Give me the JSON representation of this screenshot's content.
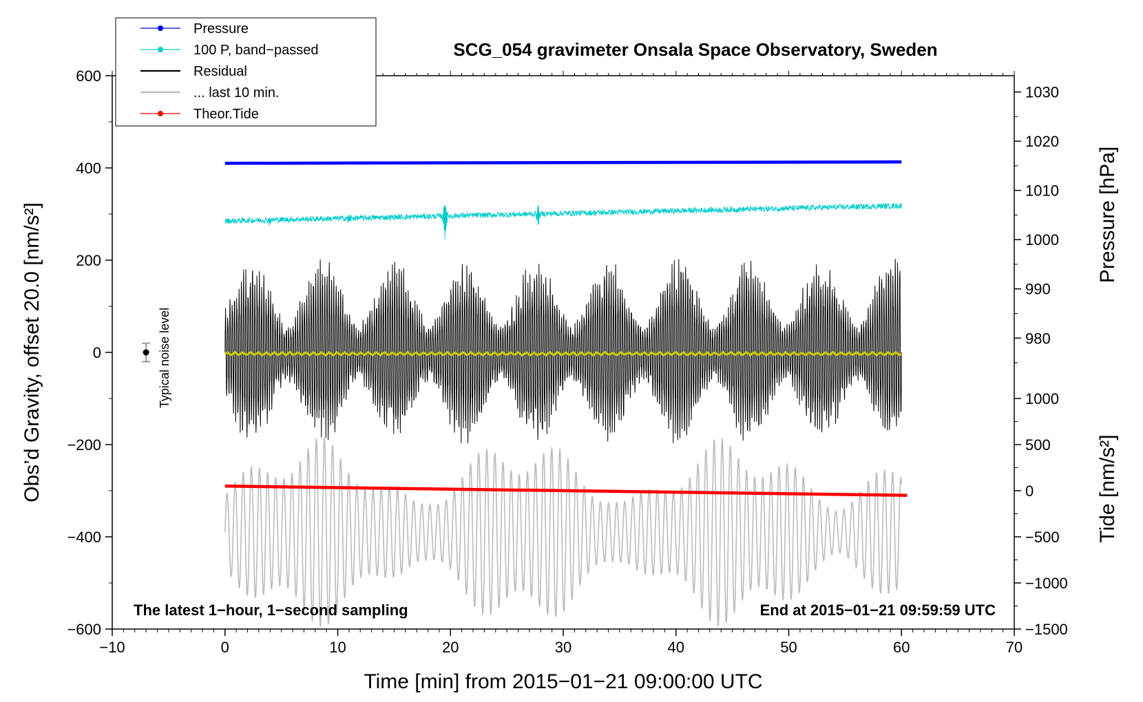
{
  "chart_data": {
    "type": "line",
    "title": "SCG_054 gravimeter Onsala Space Observatory, Sweden",
    "xlabel": "Time [min] from 2015−01−21 09:00:00 UTC",
    "ylabel_left": "Obs’d Gravity, offset 20.0 [nm/s²]",
    "ylabel_right_pressure": "Pressure [hPa]",
    "ylabel_right_tide": "Tide [nm/s²]",
    "xlim": [
      -10,
      70
    ],
    "ylim": [
      -600,
      600
    ],
    "x_ticks": [
      -10,
      0,
      10,
      20,
      30,
      40,
      50,
      60,
      70
    ],
    "x_tick_labels": [
      "−10",
      "0",
      "10",
      "20",
      "30",
      "40",
      "50",
      "60",
      "70"
    ],
    "y_ticks": [
      -600,
      -400,
      -200,
      0,
      200,
      400,
      600
    ],
    "y_tick_labels": [
      "−600",
      "−400",
      "−200",
      "0",
      "200",
      "400",
      "600"
    ],
    "pressure_axis": {
      "ticks": [
        980,
        990,
        1000,
        1010,
        1020,
        1030
      ],
      "tick_labels": [
        "980",
        "990",
        "1000",
        "1010",
        "1020",
        "1030"
      ],
      "range_in_left_units": [
        -300,
        600
      ],
      "range": [
        949,
        1033.3
      ]
    },
    "tide_axis": {
      "ticks": [
        -1500,
        -1000,
        -500,
        0,
        500,
        1000
      ],
      "tick_labels": [
        "−1500",
        "−1000",
        "−500",
        "0",
        "500",
        "1000"
      ],
      "range": [
        -1500,
        1000
      ],
      "left_units_at_min": -600,
      "left_units_per_tide_unit": 0.2
    },
    "legend": [
      {
        "label": "Pressure",
        "color": "#0000ff",
        "marker": true
      },
      {
        "label": "100 P, band−passed",
        "color": "#00cccc",
        "marker": true
      },
      {
        "label": "Residual",
        "color": "#000000",
        "marker": false
      },
      {
        "label": "... last 10 min.",
        "color": "#bbbbbb",
        "marker": false
      },
      {
        "label": "Theor.Tide",
        "color": "#ff0000",
        "marker": true
      }
    ],
    "series": [
      {
        "name": "Pressure",
        "color": "#0000ff",
        "x_range": [
          0,
          60
        ],
        "y_start": 410,
        "y_end": 413
      },
      {
        "name": "100 P, band−passed",
        "color": "#00cccc",
        "x_range": [
          0,
          60
        ],
        "y_start": 285,
        "y_end": 318
      },
      {
        "name": "Residual",
        "color": "#000000",
        "x_range": [
          0,
          60
        ],
        "y_center": 0,
        "amplitude_max": 205
      },
      {
        "name": "Residual smoothed",
        "color": "#cccc00",
        "x_range": [
          0,
          60
        ],
        "y_center": -3
      },
      {
        "name": "... last 10 min.",
        "color": "#bbbbbb",
        "x_range": [
          0,
          60
        ],
        "y_center": -390,
        "amplitude_max": 210
      },
      {
        "name": "Theor.Tide",
        "color": "#ff0000",
        "x_range": [
          0,
          60.5
        ],
        "y_start": -290,
        "y_end": -310
      }
    ],
    "noise_marker": {
      "x": -7,
      "y": 0,
      "error": 20,
      "label": "Typical noise level"
    },
    "annotations": {
      "bottom_left": "The latest 1−hour, 1−second sampling",
      "bottom_right": "End at 2015−01−21 09:59:59 UTC"
    }
  }
}
